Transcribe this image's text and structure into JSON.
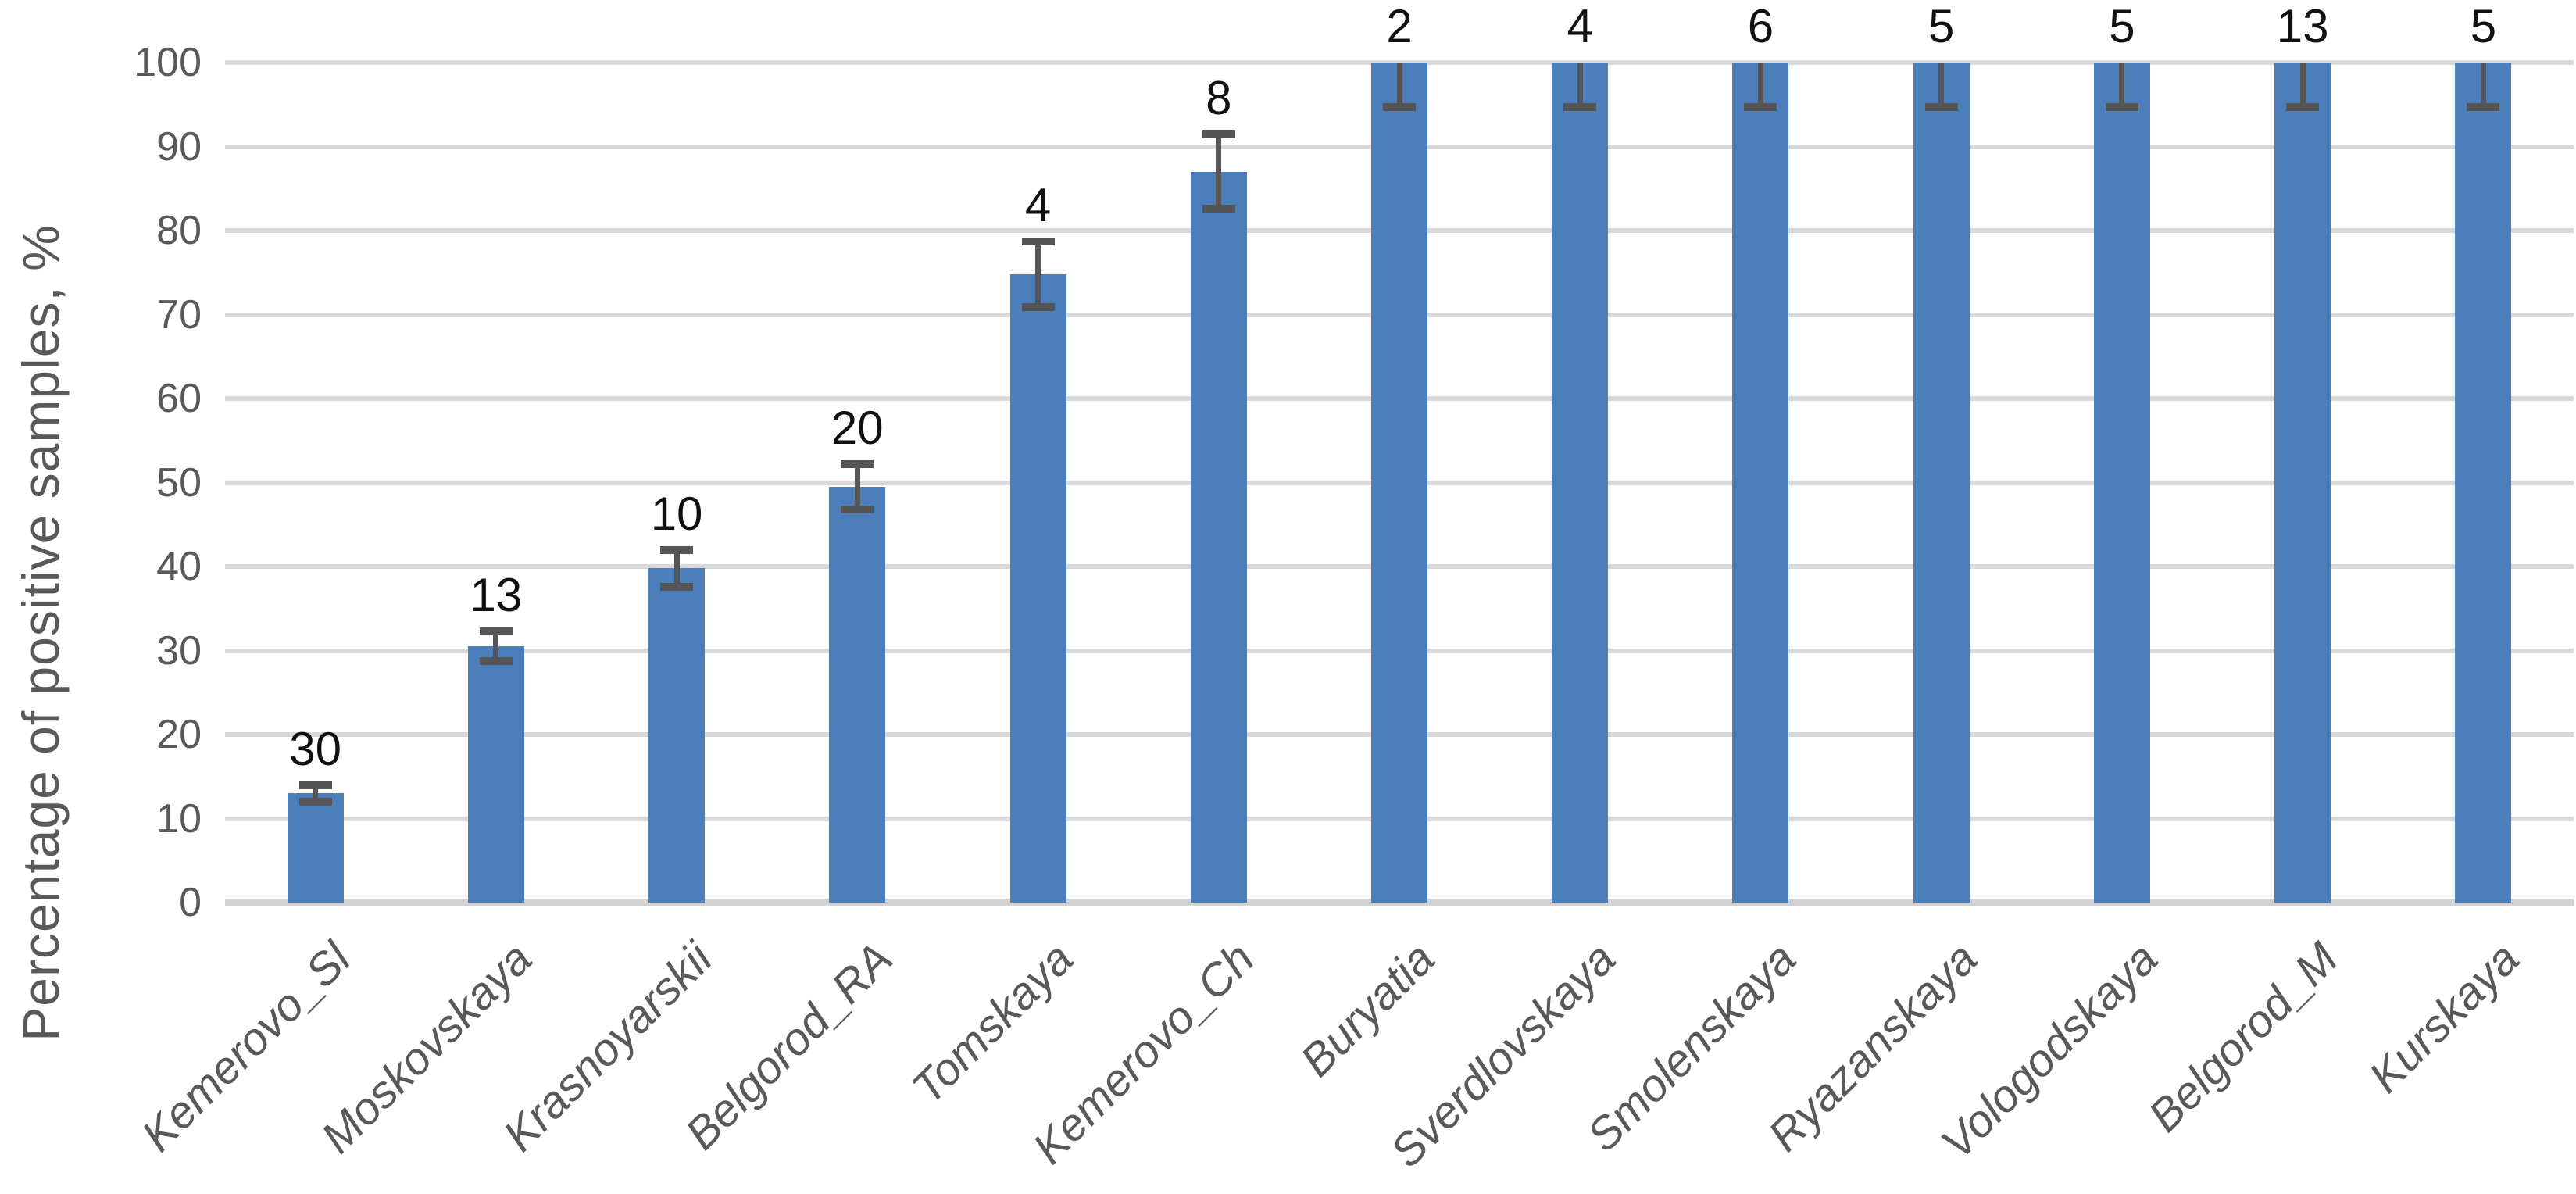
{
  "chart_data": {
    "type": "bar",
    "title": "",
    "ylabel": "Percentage of positive samples, %",
    "xlabel": "",
    "ylim": [
      0,
      100
    ],
    "yticks": [
      0,
      10,
      20,
      30,
      40,
      50,
      60,
      70,
      80,
      90,
      100
    ],
    "grid": true,
    "legend": false,
    "categories": [
      "Kemerovo_Sl",
      "Moskovskaya",
      "Krasnoyarskii",
      "Belgorod_RA",
      "Tomskaya",
      "Kemerovo_Ch",
      "Buryatia",
      "Sverdlovskaya",
      "Smolenskaya",
      "Ryazanskaya",
      "Vologodskaya",
      "Belgorod_M",
      "Kurskaya"
    ],
    "series": [
      {
        "name": "Percentage of positive samples",
        "values": [
          13,
          30.5,
          39.8,
          49.5,
          74.8,
          87,
          100,
          100,
          100,
          100,
          100,
          100,
          100
        ],
        "errors": [
          1,
          1.8,
          2.2,
          2.7,
          3.9,
          4.4,
          5.3,
          5.3,
          5.3,
          5.3,
          5.3,
          5.3,
          5.3
        ],
        "data_labels": [
          "30",
          "13",
          "10",
          "20",
          "4",
          "8",
          "2",
          "4",
          "6",
          "5",
          "5",
          "13",
          "5"
        ]
      }
    ],
    "colors": {
      "bar": "#4D7EBC",
      "error_bar": "#555555",
      "gridline": "#D9D9D9",
      "axis_line": "#D2D2D2",
      "tick_label": "#595959",
      "category_label": "#595959",
      "data_label": "#111111",
      "background": "#FFFFFF"
    }
  }
}
